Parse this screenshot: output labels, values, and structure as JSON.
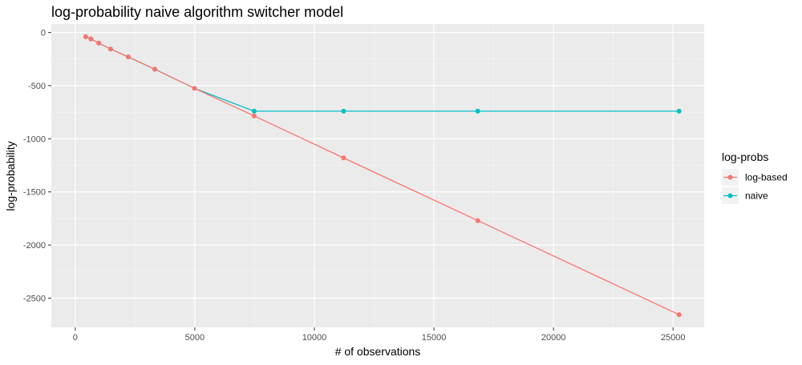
{
  "chart_data": {
    "type": "line",
    "title": "log-probability naive algorithm switcher model",
    "xlabel": "# of observations",
    "ylabel": "log-probability",
    "xlim": [
      -1000,
      26300
    ],
    "ylim": [
      -2775,
      80
    ],
    "xticks": [
      0,
      5000,
      10000,
      15000,
      20000,
      25000
    ],
    "yticks": [
      0,
      -500,
      -1000,
      -1500,
      -2000,
      -2500
    ],
    "grid": true,
    "legend": {
      "title": "log-probs",
      "position": "right"
    },
    "colors": {
      "log-based": "#F8766D",
      "naive": "#00BFC4"
    },
    "series": [
      {
        "name": "log-based",
        "x": [
          437,
          656,
          985,
          1477,
          2216,
          3325,
          4987,
          7481,
          11222,
          16834,
          25251
        ],
        "y": [
          -40,
          -60,
          -100,
          -155,
          -230,
          -345,
          -525,
          -785,
          -1180,
          -1770,
          -2655
        ]
      },
      {
        "name": "naive",
        "x": [
          437,
          656,
          985,
          1477,
          2216,
          3325,
          4987,
          7481,
          11222,
          16834,
          25251
        ],
        "y": [
          -40,
          -60,
          -100,
          -155,
          -230,
          -345,
          -525,
          -740,
          -740,
          -740,
          -740
        ]
      }
    ]
  }
}
